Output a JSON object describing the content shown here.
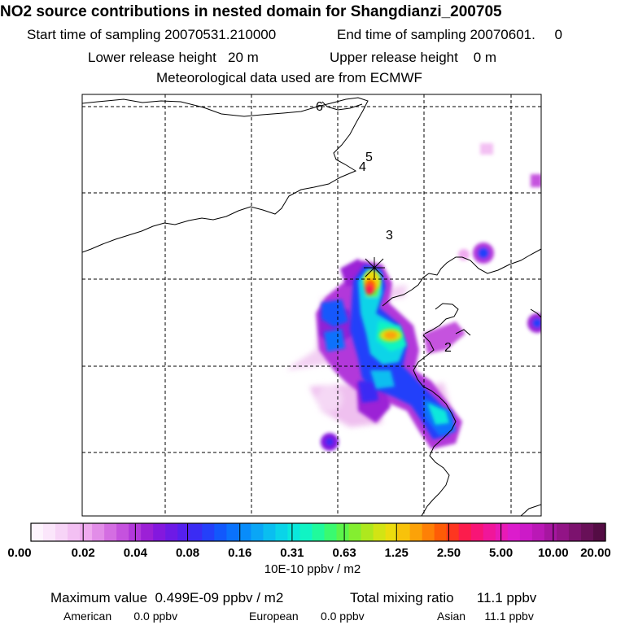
{
  "header": {
    "title": "NO2 source contributions in nested domain for Shangdianzi_200705",
    "start_sampling": "Start time of sampling 20070531.210000",
    "end_sampling": "End time of sampling 20070601.     0",
    "lower_release": "Lower release height   20 m",
    "upper_release": "Upper release height    0 m",
    "met_data": "Meteorological data used are from ECMWF"
  },
  "chart_data": {
    "type": "heatmap",
    "title": "NO2 source contributions in nested domain for Shangdianzi_200705",
    "map": {
      "grid": "dashed",
      "labels": [
        "6",
        "5",
        "4",
        "3",
        "2"
      ],
      "receptor_marker": "station-cross"
    },
    "colorbar": {
      "unit_label": "10E-10 ppbv / m2",
      "tick_labels": [
        "0.00",
        "0.02",
        "0.04",
        "0.08",
        "0.16",
        "0.31",
        "0.63",
        "1.25",
        "2.50",
        "5.00",
        "10.00",
        "20.00"
      ],
      "colors": [
        "#fdf4fd",
        "#fbe6fb",
        "#f7d4f7",
        "#f3c0f3",
        "#efaaef",
        "#e28de8",
        "#d46ee2",
        "#c552de",
        "#b238da",
        "#9c20d6",
        "#8418de",
        "#6d1ae6",
        "#5520ee",
        "#3a2cf4",
        "#2440fa",
        "#1258fc",
        "#0a72fc",
        "#088cfa",
        "#0aa6f6",
        "#0abef0",
        "#0ad4e8",
        "#0ae8dc",
        "#10f4c4",
        "#20fa9c",
        "#3afa70",
        "#5cf44a",
        "#84ee30",
        "#aee81e",
        "#d2e414",
        "#ecdc0e",
        "#f8c20a",
        "#fca208",
        "#fe8006",
        "#fe5c06",
        "#fe3620",
        "#fc1c4c",
        "#f81476",
        "#f0169a",
        "#e81ab6",
        "#dc1ccc",
        "#cc1ac8",
        "#ba18b6",
        "#a616a0",
        "#921486",
        "#7c126e",
        "#681058",
        "#540c44"
      ]
    },
    "summary": {
      "maximum_value": "Maximum value  0.499E-09 ppbv / m2",
      "total_mixing_ratio": "Total mixing ratio      11.1 ppbv",
      "american": "American       0.0 ppbv",
      "european": "European       0.0 ppbv",
      "asian": "Asian      11.1 ppbv"
    }
  }
}
